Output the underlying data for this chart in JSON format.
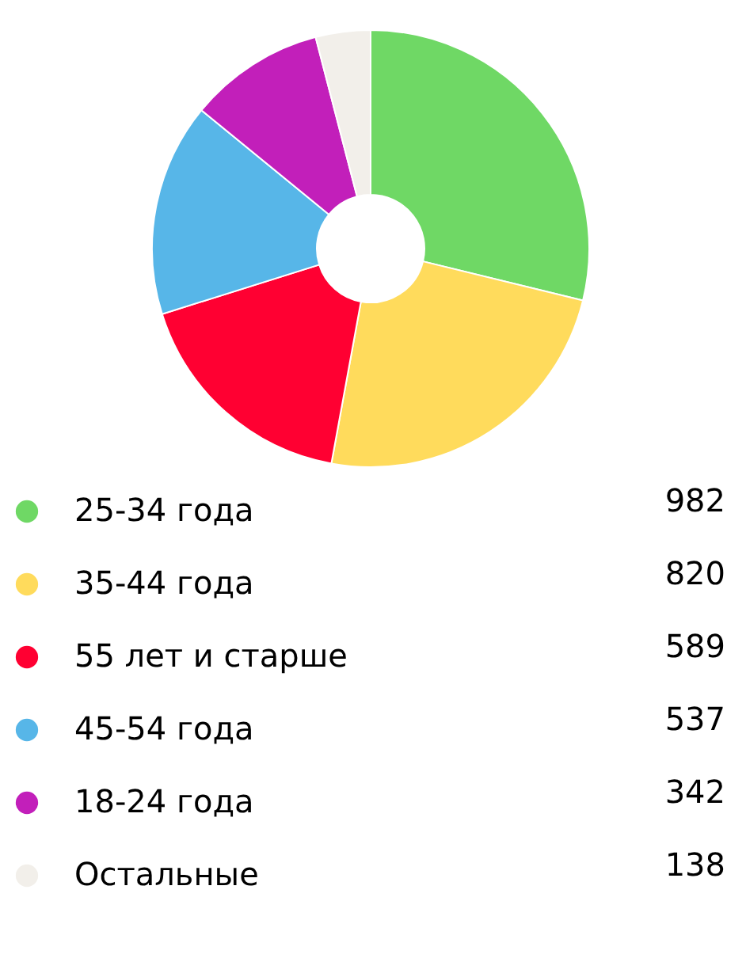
{
  "chart_data": {
    "type": "donut",
    "categories": [
      "25-34 года",
      "35-44 года",
      "55 лет и старше",
      "45-54 года",
      "18-24 года",
      "Остальные"
    ],
    "values": [
      982,
      820,
      589,
      537,
      342,
      138
    ],
    "colors": [
      "#6fd865",
      "#ffdb5c",
      "#ff0032",
      "#57b6e8",
      "#c21fba",
      "#f2efea"
    ],
    "data_labels": true,
    "legend": "bottom"
  }
}
